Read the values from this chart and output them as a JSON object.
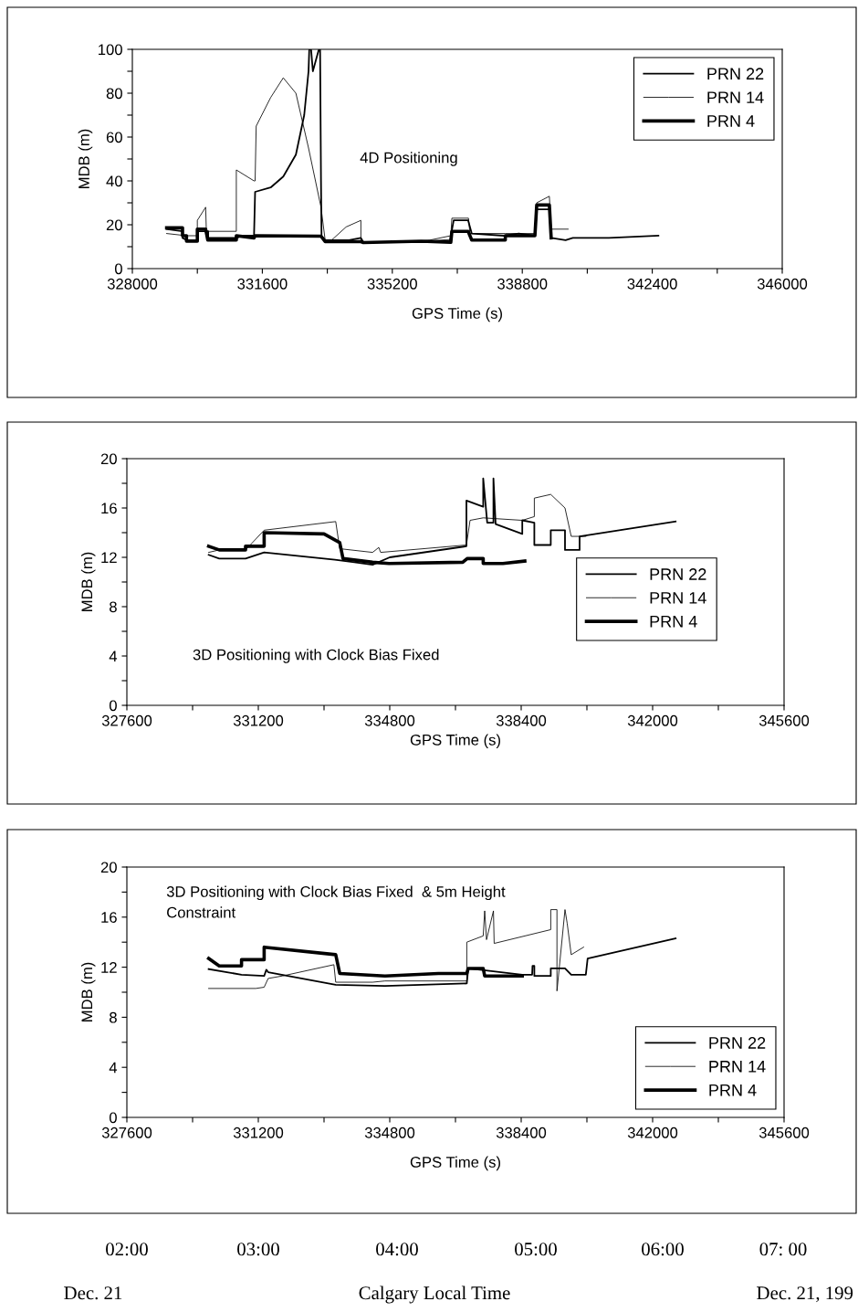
{
  "chart_data": [
    {
      "type": "line",
      "xlabel": "GPS Time (s)",
      "ylabel": "MDB (m)",
      "annotations": [
        "4D Positioning"
      ],
      "legend": "top right",
      "grid": false,
      "xlim": [
        328000,
        346000
      ],
      "xticks": [
        328000,
        {
          "value": 329800,
          "label": null
        },
        331600,
        {
          "value": 333400,
          "label": null
        },
        335200,
        {
          "value": 337000,
          "label": null
        },
        338800,
        {
          "value": 340600,
          "label": null
        },
        342400,
        {
          "value": 344200,
          "label": null
        },
        346000
      ],
      "ylim": [
        0,
        100
      ],
      "yticks": [
        0,
        {
          "value": 10,
          "label": null
        },
        20,
        {
          "value": 30,
          "label": null
        },
        40,
        {
          "value": 50,
          "label": null
        },
        60,
        {
          "value": 70,
          "label": null
        },
        80,
        {
          "value": 90,
          "label": null
        },
        100
      ],
      "series": [
        {
          "name": "PRN 22",
          "color": "#000000",
          "x": [
            328950,
            329390,
            329390,
            329500,
            329800,
            329800,
            330100,
            330100,
            330900,
            331000,
            331370,
            331400,
            331830,
            332180,
            332530,
            332760,
            332880,
            332900,
            332950,
            333000,
            333100,
            333166,
            333200,
            333225,
            333240,
            333340,
            334000,
            334330,
            334400,
            335400,
            336800,
            336900,
            337300,
            337400,
            338300,
            338700,
            339150,
            339200,
            339550,
            339600,
            340000,
            340200,
            341200,
            342570
          ],
          "values": [
            18,
            17,
            14,
            13,
            13,
            17,
            17,
            14,
            14,
            15,
            15,
            35,
            37,
            42,
            52,
            70,
            90,
            100,
            100,
            90,
            96,
            100,
            100,
            40,
            15,
            13,
            13,
            14,
            12,
            12,
            13,
            22,
            22,
            16,
            15,
            16,
            15,
            27,
            27,
            14,
            13,
            14,
            14,
            15
          ]
        },
        {
          "name": "PRN 14",
          "color": "#000000",
          "x": [
            328950,
            329500,
            329800,
            329800,
            330030,
            330050,
            330880,
            330880,
            331370,
            331400,
            331430,
            331830,
            332180,
            332530,
            332880,
            333225,
            333340,
            333520,
            333920,
            334330,
            334330,
            335430,
            336240,
            336820,
            336850,
            337310,
            337350,
            338330,
            338700,
            339150,
            339200,
            339550,
            339600,
            340070
          ],
          "values": [
            16,
            15,
            15,
            22,
            28,
            17,
            17,
            45,
            40,
            40,
            65,
            78,
            87,
            80,
            55,
            28,
            13,
            13,
            19,
            22,
            12,
            12,
            13,
            15,
            23,
            23,
            16,
            16,
            16,
            16,
            30,
            33,
            18,
            18
          ]
        },
        {
          "name": "PRN 4",
          "color": "#000000",
          "x": [
            328950,
            329390,
            329390,
            329500,
            329500,
            329800,
            329800,
            330030,
            330090,
            330880,
            330880,
            331370,
            331400,
            333225,
            333340,
            334330,
            334400,
            336000,
            336820,
            336850,
            337300,
            337400,
            338330,
            338330,
            339150,
            339200,
            339550,
            339600
          ],
          "values": [
            18.6,
            18.6,
            15,
            15,
            12.5,
            12.5,
            18,
            18,
            13,
            13,
            15,
            14,
            15,
            14.8,
            12.3,
            12.3,
            11.9,
            12.5,
            12,
            17,
            17,
            13,
            13,
            15,
            15,
            29,
            29,
            14
          ]
        }
      ]
    },
    {
      "type": "line",
      "xlabel": "GPS Time (s)",
      "ylabel": "MDB (m)",
      "annotations": [
        "3D Positioning with Clock Bias Fixed"
      ],
      "legend": "right",
      "grid": false,
      "xlim": [
        327600,
        345600
      ],
      "xticks": [
        327600,
        {
          "value": 329400,
          "label": null
        },
        331200,
        {
          "value": 333000,
          "label": null
        },
        334800,
        {
          "value": 336600,
          "label": null
        },
        338400,
        {
          "value": 340200,
          "label": null
        },
        342000,
        {
          "value": 343800,
          "label": null
        },
        345600
      ],
      "ylim": [
        0,
        20
      ],
      "yticks": [
        0,
        {
          "value": 2,
          "label": null
        },
        4,
        {
          "value": 6,
          "label": null
        },
        8,
        {
          "value": 10,
          "label": null
        },
        12,
        {
          "value": 14,
          "label": null
        },
        16,
        {
          "value": 18,
          "label": null
        },
        20
      ],
      "series": [
        {
          "name": "PRN 22",
          "color": "#000000",
          "x": [
            329840,
            330130,
            330850,
            331360,
            333300,
            333830,
            334330,
            334800,
            336900,
            336900,
            337360,
            337360,
            337470,
            337640,
            337640,
            337700,
            338430,
            338430,
            338760,
            338760,
            339210,
            339210,
            339600,
            339600,
            340000,
            340000,
            342630
          ],
          "values": [
            12.2,
            11.9,
            11.9,
            12.4,
            11.8,
            11.6,
            11.4,
            12.0,
            12.9,
            16.6,
            16.1,
            18.4,
            14.8,
            14.8,
            18.4,
            14.7,
            13.9,
            15.0,
            14.8,
            13.0,
            13.0,
            14.2,
            14.2,
            12.6,
            12.6,
            13.7,
            14.9
          ]
        },
        {
          "name": "PRN 14",
          "color": "#000000",
          "x": [
            329840,
            330130,
            330850,
            331360,
            333320,
            333430,
            334330,
            334500,
            334550,
            336900,
            337000,
            337360,
            338430,
            338760,
            338760,
            339210,
            339600,
            339770,
            340170
          ],
          "values": [
            12.4,
            12.6,
            12.6,
            14.2,
            14.9,
            12.7,
            12.4,
            12.8,
            12.4,
            13.0,
            15.0,
            15.2,
            15.0,
            15.3,
            16.8,
            17.1,
            16.0,
            13.7,
            13.7
          ]
        },
        {
          "name": "PRN 4",
          "color": "#000000",
          "x": [
            329840,
            330130,
            330850,
            330850,
            331360,
            331360,
            333000,
            333430,
            333520,
            334330,
            334780,
            336800,
            336920,
            337360,
            337360,
            337900,
            338500
          ],
          "values": [
            12.9,
            12.6,
            12.6,
            12.9,
            12.9,
            14.0,
            13.9,
            13.2,
            11.9,
            11.6,
            11.5,
            11.6,
            11.9,
            11.9,
            11.5,
            11.5,
            11.7
          ]
        }
      ]
    },
    {
      "type": "line",
      "xlabel": "GPS Time (s)",
      "ylabel": "MDB (m)",
      "annotations": [
        "3D Positioning with Clock Bias Fixed  & 5m Height Constraint",
        "02:00",
        "03:00",
        "04:00",
        "05:00",
        "06:00",
        "07: 00",
        "Dec. 21",
        "Calgary Local Time",
        "Dec. 21, 199"
      ],
      "legend": "bottom right",
      "grid": false,
      "xlim": [
        327600,
        345600
      ],
      "xticks": [
        327600,
        {
          "value": 329400,
          "label": null
        },
        331200,
        {
          "value": 333000,
          "label": null
        },
        334800,
        {
          "value": 336600,
          "label": null
        },
        338400,
        {
          "value": 340200,
          "label": null
        },
        342000,
        {
          "value": 343800,
          "label": null
        },
        345600
      ],
      "ylim": [
        0,
        20
      ],
      "yticks": [
        0,
        {
          "value": 2,
          "label": null
        },
        4,
        {
          "value": 6,
          "label": null
        },
        8,
        {
          "value": 10,
          "label": null
        },
        12,
        {
          "value": 14,
          "label": null
        },
        16,
        {
          "value": 18,
          "label": null
        },
        20
      ],
      "series": [
        {
          "name": "PRN 22",
          "color": "#000000",
          "x": [
            329840,
            330740,
            331360,
            331420,
            331470,
            333320,
            334670,
            336910,
            336950,
            338430,
            338700,
            338710,
            338760,
            338760,
            339210,
            339210,
            339600,
            339770,
            340170,
            340220,
            342630
          ],
          "values": [
            11.85,
            11.4,
            11.3,
            11.8,
            11.6,
            10.6,
            10.5,
            10.7,
            11.9,
            11.4,
            11.4,
            12.1,
            12.1,
            11.3,
            11.3,
            11.9,
            11.9,
            11.4,
            11.4,
            12.7,
            14.3
          ]
        },
        {
          "name": "PRN 14",
          "color": "#000000",
          "x": [
            329840,
            331130,
            331360,
            331470,
            331860,
            333270,
            333320,
            334330,
            334670,
            336910,
            336910,
            337360,
            337400,
            337450,
            337640,
            337660,
            339210,
            339210,
            339380,
            339380,
            339600,
            339660,
            339770,
            340110
          ],
          "values": [
            10.3,
            10.3,
            10.4,
            11.1,
            11.3,
            12.2,
            10.8,
            10.8,
            10.9,
            10.9,
            14.0,
            14.5,
            16.5,
            14.2,
            16.5,
            13.9,
            15.0,
            16.6,
            16.6,
            10.1,
            16.6,
            15.5,
            13.0,
            13.6
          ]
        },
        {
          "name": "PRN 4",
          "color": "#000000",
          "x": [
            329840,
            330130,
            330740,
            330740,
            331360,
            331360,
            333320,
            333430,
            334670,
            336130,
            336910,
            336950,
            337360,
            337400,
            337640,
            337700,
            338430
          ],
          "values": [
            12.7,
            12.1,
            12.1,
            12.6,
            12.6,
            13.6,
            13.0,
            11.5,
            11.3,
            11.5,
            11.5,
            11.9,
            11.9,
            11.3,
            11.3,
            11.3,
            11.3
          ]
        }
      ]
    }
  ]
}
